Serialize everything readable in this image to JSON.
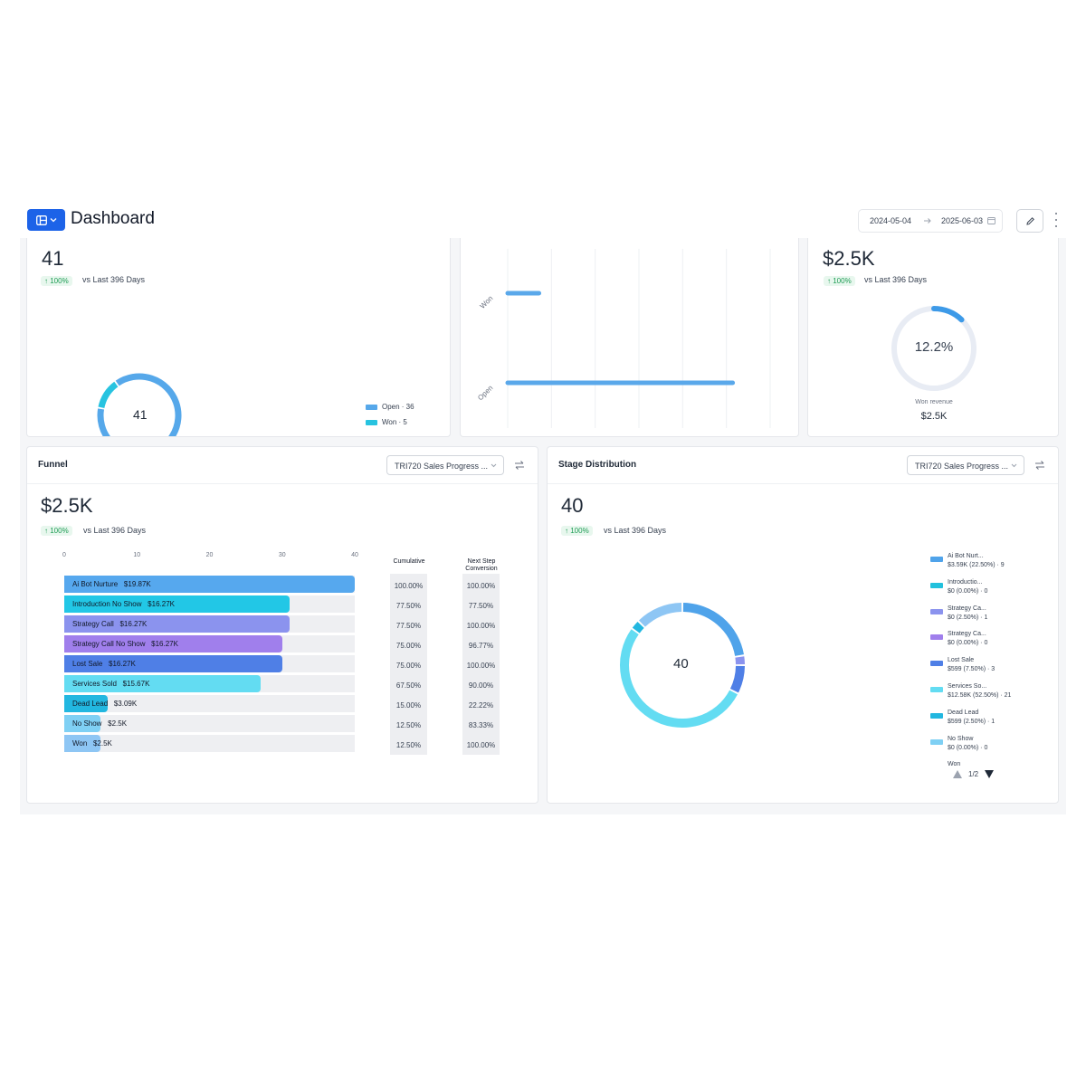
{
  "header": {
    "title": "Dashboard",
    "date_start": "2024-05-04",
    "date_end": "2025-06-03",
    "icons": {
      "menu": "layout-icon",
      "edit": "pencil-icon",
      "more": "more-vertical-icon",
      "calendar": "calendar-icon"
    }
  },
  "colors": {
    "accent": "#1d63e8",
    "badge_green": "#1f9d55",
    "open": "#4fa3ea",
    "won": "#22c1dd"
  },
  "cards": {
    "opportunities": {
      "value": "41",
      "badge": "100%",
      "comparison": "vs Last 396 Days",
      "donut_center": "41",
      "legend": [
        {
          "label": "Open · 36",
          "color": "#56a8ea",
          "value": 36
        },
        {
          "label": "Won · 5",
          "color": "#27c3e0",
          "value": 5
        }
      ]
    },
    "status_bars": {
      "chart_data": {
        "type": "bar",
        "orientation": "horizontal",
        "categories": [
          "Won",
          "Open"
        ],
        "values": [
          5,
          36
        ],
        "xlim": [
          0,
          42
        ],
        "grid": true
      }
    },
    "revenue": {
      "value": "$2.5K",
      "badge": "100%",
      "comparison": "vs Last 396 Days",
      "gauge_percent": 12.2,
      "gauge_label": "12.2%",
      "caption": "Won revenue",
      "caption_value": "$2.5K"
    },
    "funnel": {
      "title": "Funnel",
      "pipeline": "TRI720 Sales Progress ...",
      "value": "$2.5K",
      "badge": "100%",
      "comparison": "vs Last 396 Days",
      "col_cumulative": "Cumulative",
      "col_next_line1": "Next Step",
      "col_next_line2": "Conversion",
      "chart_data": {
        "type": "bar",
        "orientation": "horizontal",
        "xlim": [
          0,
          40
        ],
        "ticks": [
          "0",
          "10",
          "20",
          "30",
          "40"
        ],
        "stages": [
          {
            "label": "Ai Bot Nurture",
            "amount": "$19.87K",
            "count": 40,
            "cumulative": "100.00%",
            "next": "100.00%",
            "color": "#56a8ee"
          },
          {
            "label": "Introduction No Show",
            "amount": "$16.27K",
            "count": 31,
            "cumulative": "77.50%",
            "next": "77.50%",
            "color": "#22c7e6"
          },
          {
            "label": "Strategy Call",
            "amount": "$16.27K",
            "count": 31,
            "cumulative": "77.50%",
            "next": "100.00%",
            "color": "#8b93ee"
          },
          {
            "label": "Strategy Call No Show",
            "amount": "$16.27K",
            "count": 30,
            "cumulative": "75.00%",
            "next": "96.77%",
            "color": "#a07fec"
          },
          {
            "label": "Lost Sale",
            "amount": "$16.27K",
            "count": 30,
            "cumulative": "75.00%",
            "next": "100.00%",
            "color": "#4f7fe6"
          },
          {
            "label": "Services Sold",
            "amount": "$15.67K",
            "count": 27,
            "cumulative": "67.50%",
            "next": "90.00%",
            "color": "#63dcf2"
          },
          {
            "label": "Dead Lead",
            "amount": "$3.09K",
            "count": 6,
            "cumulative": "15.00%",
            "next": "22.22%",
            "color": "#22b7e0"
          },
          {
            "label": "No Show",
            "amount": "$2.5K",
            "count": 5,
            "cumulative": "12.50%",
            "next": "83.33%",
            "color": "#7fd0f4"
          },
          {
            "label": "Won",
            "amount": "$2.5K",
            "count": 5,
            "cumulative": "12.50%",
            "next": "100.00%",
            "color": "#8ec6f4"
          }
        ]
      }
    },
    "stage_distribution": {
      "title": "Stage Distribution",
      "pipeline": "TRI720 Sales Progress ...",
      "value": "40",
      "badge": "100%",
      "comparison": "vs Last 396 Days",
      "donut_center": "40",
      "pager": "1/2",
      "chart_data": {
        "type": "pie",
        "donut": true,
        "segments": [
          {
            "name": "Ai Bot Nurt...",
            "detail": "$3.59K (22.50%) · 9",
            "value": 9,
            "color": "#4fa3ea"
          },
          {
            "name": "Introductio...",
            "detail": "$0 (0.00%) · 0",
            "value": 0,
            "color": "#22c1dd"
          },
          {
            "name": "Strategy Ca...",
            "detail": "$0 (2.50%) · 1",
            "value": 1,
            "color": "#8b93ee"
          },
          {
            "name": "Strategy Ca...",
            "detail": "$0 (0.00%) · 0",
            "value": 0,
            "color": "#a07fec"
          },
          {
            "name": "Lost Sale",
            "detail": "$599 (7.50%) · 3",
            "value": 3,
            "color": "#4f7fe6"
          },
          {
            "name": "Services So...",
            "detail": "$12.58K (52.50%) · 21",
            "value": 21,
            "color": "#63dcf2"
          },
          {
            "name": "Dead Lead",
            "detail": "$599 (2.50%) · 1",
            "value": 1,
            "color": "#22b7e0"
          },
          {
            "name": "No Show",
            "detail": "$0 (0.00%) · 0",
            "value": 0,
            "color": "#7fd0f4"
          },
          {
            "name": "Won",
            "detail": "",
            "value": 5,
            "color": "#8ec6f4"
          }
        ]
      }
    }
  }
}
